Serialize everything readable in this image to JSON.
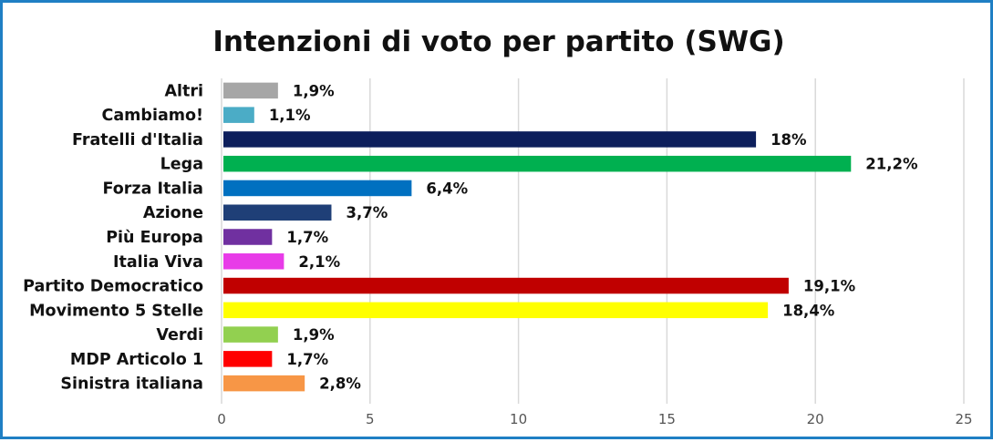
{
  "chart_data": {
    "type": "bar",
    "orientation": "horizontal",
    "title": "Intenzioni di voto per partito (SWG)",
    "categories": [
      "Altri",
      "Cambiamo!",
      "Fratelli d'Italia",
      "Lega",
      "Forza Italia",
      "Azione",
      "Più Europa",
      "Italia Viva",
      "Partito Democratico",
      "Movimento 5 Stelle",
      "Verdi",
      "MDP Articolo 1",
      "Sinistra italiana"
    ],
    "values": [
      1.9,
      1.1,
      18,
      21.2,
      6.4,
      3.7,
      1.7,
      2.1,
      19.1,
      18.4,
      1.9,
      1.7,
      2.8
    ],
    "value_labels": [
      "1,9%",
      "1,1%",
      "18%",
      "21,2%",
      "6,4%",
      "3,7%",
      "1,7%",
      "2,1%",
      "19,1%",
      "18,4%",
      "1,9%",
      "1,7%",
      "2,8%"
    ],
    "colors": [
      "#a6a6a6",
      "#4bacc6",
      "#0d1f5c",
      "#00b050",
      "#0070c0",
      "#1f3f77",
      "#7030a0",
      "#e83be8",
      "#c00000",
      "#ffff00",
      "#92d050",
      "#ff0000",
      "#f79646"
    ],
    "xlim": [
      0,
      25
    ],
    "xticks": [
      0,
      5,
      10,
      15,
      20,
      25
    ],
    "xlabel": "",
    "ylabel": "",
    "grid": true,
    "legend": "none"
  },
  "frame_color": "#1f7fc4"
}
